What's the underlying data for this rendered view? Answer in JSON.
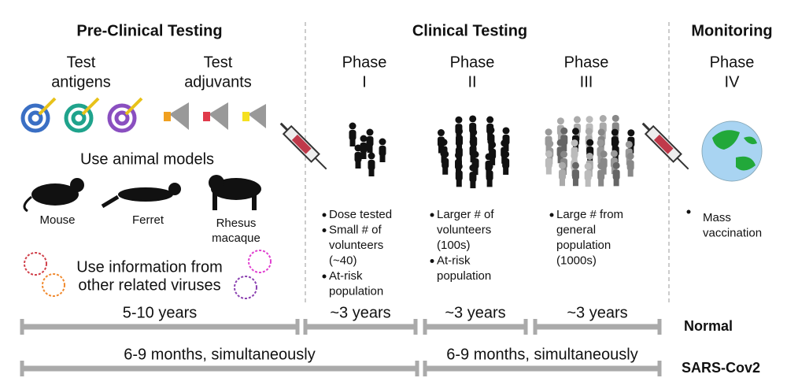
{
  "pre_clinical": {
    "title": "Pre-Clinical Testing",
    "antigens": [
      "Test",
      "antigens"
    ],
    "adjuvants": [
      "Test",
      "adjuvants"
    ],
    "animal_models": "Use animal models",
    "animals": [
      [
        "Mouse"
      ],
      [
        "Ferret"
      ],
      [
        "Rhesus",
        "macaque"
      ]
    ],
    "related_viruses": [
      "Use information from",
      "other related viruses"
    ]
  },
  "clinical": {
    "title": "Clinical Testing"
  },
  "monitoring": {
    "title": "Monitoring"
  },
  "phases": [
    {
      "label": [
        "Phase",
        "I"
      ],
      "bullets": [
        [
          "Dose tested"
        ],
        [
          "Small # of",
          "volunteers",
          "(~40)"
        ],
        [
          "At-risk",
          "population"
        ]
      ]
    },
    {
      "label": [
        "Phase",
        "II"
      ],
      "bullets": [
        [
          "Larger # of",
          "volunteers",
          "(100s)"
        ],
        [
          "At-risk",
          "population"
        ]
      ]
    },
    {
      "label": [
        "Phase",
        "III"
      ],
      "bullets": [
        [
          "Large # from",
          "general",
          "population",
          "(1000s)"
        ]
      ]
    },
    {
      "label": [
        "Phase",
        "IV"
      ],
      "bullets": [
        [
          "Mass",
          "vaccination"
        ]
      ]
    }
  ],
  "timelines": [
    {
      "name": "Normal",
      "segments": [
        "5-10 years",
        "~3 years",
        "~3 years",
        "~3 years"
      ]
    },
    {
      "name": "SARS-Cov2",
      "segments": [
        "6-9 months, simultaneously",
        "6-9 months, simultaneously"
      ]
    }
  ]
}
